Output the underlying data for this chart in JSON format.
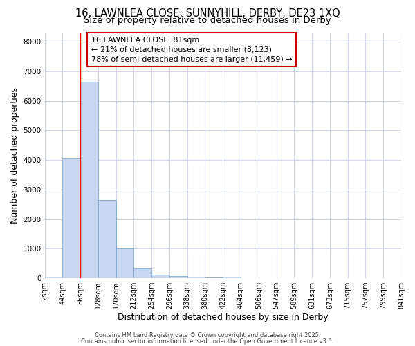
{
  "title_line1": "16, LAWNLEA CLOSE, SUNNYHILL, DERBY, DE23 1XQ",
  "title_line2": "Size of property relative to detached houses in Derby",
  "xlabel": "Distribution of detached houses by size in Derby",
  "ylabel": "Number of detached properties",
  "bar_values": [
    50,
    4050,
    6650,
    2650,
    1000,
    330,
    125,
    80,
    55,
    30,
    55,
    0,
    0,
    0,
    0,
    0,
    0,
    0,
    0,
    0
  ],
  "bar_color": "#c8d8f0",
  "bar_edge_color": "#7eaad4",
  "x_labels": [
    "2sqm",
    "44sqm",
    "86sqm",
    "128sqm",
    "170sqm",
    "212sqm",
    "254sqm",
    "296sqm",
    "338sqm",
    "380sqm",
    "422sqm",
    "464sqm",
    "506sqm",
    "547sqm",
    "589sqm",
    "631sqm",
    "673sqm",
    "715sqm",
    "757sqm",
    "799sqm",
    "841sqm"
  ],
  "ylim": [
    0,
    8300
  ],
  "yticks": [
    0,
    1000,
    2000,
    3000,
    4000,
    5000,
    6000,
    7000,
    8000
  ],
  "annotation_text": "16 LAWNLEA CLOSE: 81sqm\n← 21% of detached houses are smaller (3,123)\n78% of semi-detached houses are larger (11,459) →",
  "annotation_box_color": "#cc0000",
  "footer_line1": "Contains HM Land Registry data © Crown copyright and database right 2025.",
  "footer_line2": "Contains public sector information licensed under the Open Government Licence v3.0.",
  "background_color": "#ffffff",
  "grid_color": "#d0d8e8",
  "title_fontsize": 10.5,
  "subtitle_fontsize": 9.5,
  "axis_label_fontsize": 9,
  "tick_fontsize": 7,
  "annotation_fontsize": 8,
  "footer_fontsize": 6
}
